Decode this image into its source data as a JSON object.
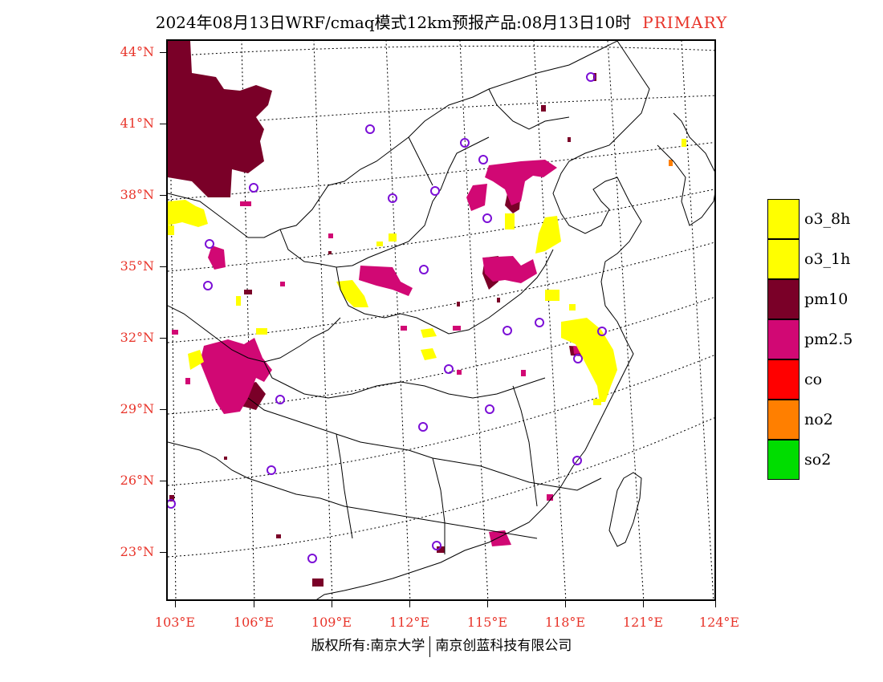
{
  "title": {
    "main": "2024年08月13日WRF/cmaq模式12km预报产品:08月13日10时",
    "tag": "PRIMARY"
  },
  "map": {
    "lat_labels": [
      "44°N",
      "41°N",
      "38°N",
      "35°N",
      "32°N",
      "29°N",
      "26°N",
      "23°N"
    ],
    "lon_labels": [
      "103°E",
      "106°E",
      "109°E",
      "112°E",
      "115°E",
      "118°E",
      "121°E",
      "124°E"
    ],
    "colors": {
      "o3": "#ffff00",
      "pm10": "#7a0028",
      "pm25": "#d10874",
      "co": "#ff0000",
      "no2": "#ff7f00",
      "so2": "#00dd00",
      "station_ring": "#7b0fd6",
      "boundary": "#000000",
      "grid": "#000000"
    }
  },
  "legend": {
    "items": [
      {
        "label": "o3_8h",
        "color": "#ffff00"
      },
      {
        "label": "o3_1h",
        "color": "#ffff00"
      },
      {
        "label": "pm10",
        "color": "#7a0028"
      },
      {
        "label": "pm2.5",
        "color": "#d10874"
      },
      {
        "label": "co",
        "color": "#ff0000"
      },
      {
        "label": "no2",
        "color": "#ff7f00"
      },
      {
        "label": "so2",
        "color": "#00dd00"
      }
    ]
  },
  "footer": {
    "left": "版权所有:南京大学",
    "right": "南京创蓝科技有限公司"
  }
}
